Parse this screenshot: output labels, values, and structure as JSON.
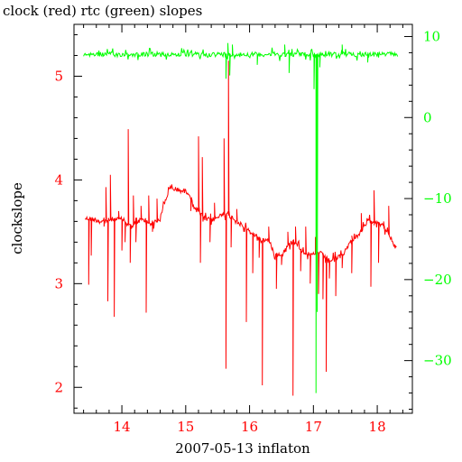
{
  "chart_data": {
    "type": "line",
    "title": "clock (red) rtc (green) slopes",
    "xlabel": "2007-05-13 inflaton",
    "ylabel": "clockslope",
    "xlim": [
      13.25,
      18.55
    ],
    "ylim_left": [
      1.75,
      5.5
    ],
    "ylim_right": [
      -36.5,
      11.5
    ],
    "x_ticks": [
      14,
      15,
      16,
      17,
      18
    ],
    "x_tick_labels": [
      "14",
      "15",
      "16",
      "17",
      "18"
    ],
    "y_left_ticks": [
      2,
      3,
      4,
      5
    ],
    "y_left_tick_labels": [
      "2",
      "3",
      "4",
      "5"
    ],
    "y_right_ticks": [
      10,
      0,
      -10,
      -20,
      -30
    ],
    "y_right_tick_labels": [
      "10",
      "0",
      "−10",
      "−20",
      "−30"
    ],
    "colors": {
      "clock": "#ff0000",
      "rtc": "#00ff00",
      "frame": "#000000"
    },
    "series": [
      {
        "name": "clock",
        "axis": "left",
        "color": "#ff0000",
        "baseline": [
          [
            13.42,
            3.63
          ],
          [
            13.55,
            3.62
          ],
          [
            13.7,
            3.6
          ],
          [
            13.85,
            3.62
          ],
          [
            14.0,
            3.62
          ],
          [
            14.15,
            3.55
          ],
          [
            14.3,
            3.62
          ],
          [
            14.45,
            3.58
          ],
          [
            14.6,
            3.62
          ],
          [
            14.65,
            3.75
          ],
          [
            14.75,
            3.92
          ],
          [
            14.9,
            3.9
          ],
          [
            15.05,
            3.88
          ],
          [
            15.12,
            3.75
          ],
          [
            15.2,
            3.7
          ],
          [
            15.3,
            3.62
          ],
          [
            15.45,
            3.62
          ],
          [
            15.6,
            3.68
          ],
          [
            15.75,
            3.63
          ],
          [
            15.9,
            3.55
          ],
          [
            16.05,
            3.48
          ],
          [
            16.2,
            3.42
          ],
          [
            16.3,
            3.42
          ],
          [
            16.38,
            3.3
          ],
          [
            16.5,
            3.27
          ],
          [
            16.6,
            3.37
          ],
          [
            16.7,
            3.42
          ],
          [
            16.8,
            3.33
          ],
          [
            16.95,
            3.27
          ],
          [
            17.1,
            3.3
          ],
          [
            17.25,
            3.22
          ],
          [
            17.45,
            3.27
          ],
          [
            17.6,
            3.42
          ],
          [
            17.75,
            3.5
          ],
          [
            17.85,
            3.6
          ],
          [
            18.0,
            3.6
          ],
          [
            18.1,
            3.55
          ],
          [
            18.2,
            3.45
          ],
          [
            18.3,
            3.33
          ]
        ],
        "spikes": [
          [
            13.48,
            2.99
          ],
          [
            13.52,
            3.27
          ],
          [
            13.72,
            3.55
          ],
          [
            13.75,
            3.93
          ],
          [
            13.78,
            2.83
          ],
          [
            13.82,
            4.05
          ],
          [
            13.88,
            2.68
          ],
          [
            13.95,
            3.7
          ],
          [
            14.0,
            3.32
          ],
          [
            14.05,
            3.4
          ],
          [
            14.1,
            4.49
          ],
          [
            14.13,
            3.2
          ],
          [
            14.18,
            3.85
          ],
          [
            14.22,
            3.4
          ],
          [
            14.3,
            3.75
          ],
          [
            14.38,
            2.72
          ],
          [
            14.42,
            3.85
          ],
          [
            14.48,
            3.5
          ],
          [
            14.55,
            3.82
          ],
          [
            15.08,
            3.7
          ],
          [
            15.2,
            4.42
          ],
          [
            15.23,
            3.2
          ],
          [
            15.26,
            4.22
          ],
          [
            15.38,
            3.4
          ],
          [
            15.45,
            3.78
          ],
          [
            15.6,
            4.4
          ],
          [
            15.63,
            2.18
          ],
          [
            15.67,
            5.15
          ],
          [
            15.71,
            3.35
          ],
          [
            15.8,
            3.72
          ],
          [
            15.92,
            3.5
          ],
          [
            15.95,
            2.63
          ],
          [
            16.05,
            3.1
          ],
          [
            16.15,
            3.25
          ],
          [
            16.2,
            2.02
          ],
          [
            16.3,
            3.55
          ],
          [
            16.42,
            2.95
          ],
          [
            16.5,
            3.18
          ],
          [
            16.6,
            3.5
          ],
          [
            16.68,
            1.92
          ],
          [
            16.72,
            3.55
          ],
          [
            16.8,
            3.12
          ],
          [
            16.88,
            3.55
          ],
          [
            16.95,
            3.0
          ],
          [
            17.03,
            3.45
          ],
          [
            17.08,
            2.9
          ],
          [
            17.15,
            2.85
          ],
          [
            17.2,
            2.15
          ],
          [
            17.25,
            3.05
          ],
          [
            17.35,
            2.88
          ],
          [
            17.45,
            3.15
          ],
          [
            17.6,
            3.1
          ],
          [
            17.75,
            3.68
          ],
          [
            17.9,
            2.97
          ],
          [
            17.95,
            3.9
          ],
          [
            18.02,
            3.2
          ],
          [
            18.1,
            3.6
          ],
          [
            18.18,
            3.75
          ]
        ]
      },
      {
        "name": "rtc",
        "axis": "right",
        "color": "#00ff00",
        "baseline": [
          [
            13.4,
            7.8
          ],
          [
            18.32,
            7.8
          ]
        ],
        "spikes": [
          [
            15.63,
            4.8
          ],
          [
            15.66,
            9.2
          ],
          [
            15.69,
            5.2
          ],
          [
            15.73,
            9.0
          ],
          [
            16.12,
            6.5
          ],
          [
            16.55,
            9.0
          ],
          [
            16.62,
            5.5
          ],
          [
            17.01,
            3.5
          ],
          [
            17.04,
            -34.0
          ],
          [
            17.06,
            -24.0
          ],
          [
            17.1,
            6.2
          ],
          [
            17.45,
            9.0
          ],
          [
            17.85,
            6.8
          ]
        ]
      }
    ]
  }
}
